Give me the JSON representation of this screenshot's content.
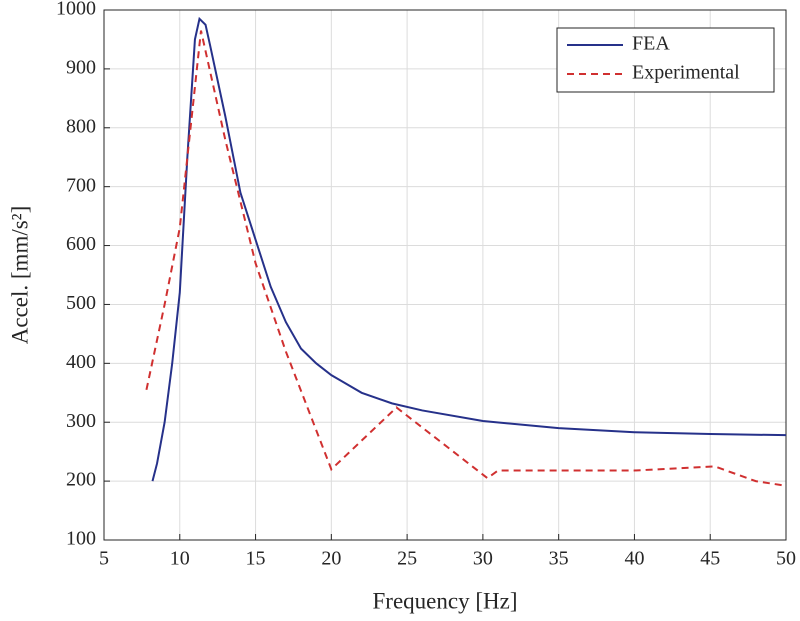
{
  "chart_data": {
    "type": "line",
    "xlabel": "Frequency [Hz]",
    "ylabel": "Accel. [mm/s²]",
    "xlim": [
      5,
      50
    ],
    "xticks": [
      5,
      10,
      15,
      20,
      25,
      30,
      35,
      40,
      45,
      50
    ],
    "ylim": [
      100,
      1000
    ],
    "yticks": [
      100,
      200,
      300,
      400,
      500,
      600,
      700,
      800,
      900,
      1000
    ],
    "grid": true,
    "legend": "upper right",
    "series": [
      {
        "name": "FEA",
        "color": "#26318a",
        "linestyle": "solid",
        "x": [
          8.2,
          8.5,
          9,
          9.5,
          10,
          10.5,
          11,
          11.3,
          11.7,
          12,
          13,
          14,
          15,
          16,
          17,
          18,
          19,
          20,
          22,
          24,
          26,
          30,
          35,
          40,
          45,
          50
        ],
        "values": [
          200,
          230,
          300,
          400,
          520,
          750,
          950,
          985,
          975,
          940,
          820,
          690,
          610,
          530,
          470,
          425,
          400,
          380,
          350,
          332,
          320,
          302,
          290,
          283,
          280,
          278
        ]
      },
      {
        "name": "Experimental",
        "color": "#d03030",
        "linestyle": "dashed",
        "x": [
          7.8,
          9,
          10,
          11.4,
          13,
          15,
          17,
          20,
          24.3,
          30.3,
          31,
          40,
          45.3,
          48,
          50
        ],
        "values": [
          355,
          500,
          630,
          965,
          780,
          570,
          420,
          220,
          325,
          205,
          218,
          218,
          225,
          200,
          192
        ]
      }
    ]
  }
}
